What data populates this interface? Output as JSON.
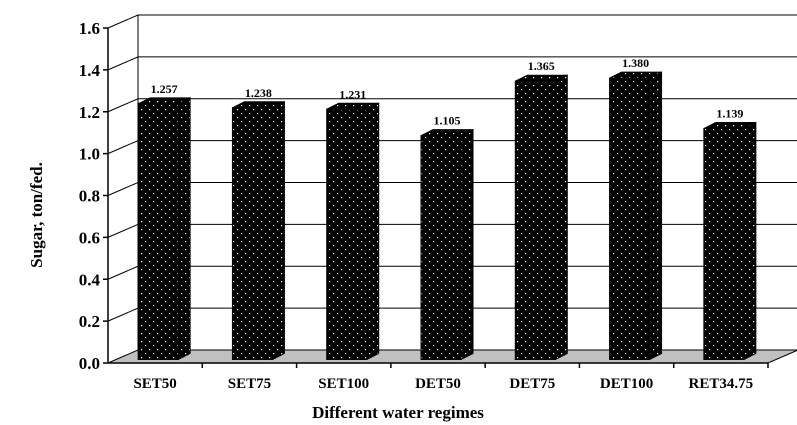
{
  "chart_data": {
    "type": "bar",
    "title": "",
    "xlabel": "Different water regimes",
    "ylabel": "Sugar, ton/fed.",
    "ylim": [
      0,
      1.6
    ],
    "yticks": [
      "0.0",
      "0.2",
      "0.4",
      "0.6",
      "0.8",
      "1.0",
      "1.2",
      "1.4",
      "1.6"
    ],
    "grid": true,
    "categories": [
      "SET50",
      "SET75",
      "SET100",
      "DET50",
      "DET75",
      "DET100",
      "RET34.75"
    ],
    "values": [
      1.257,
      1.238,
      1.231,
      1.105,
      1.365,
      1.38,
      1.139
    ],
    "data_labels": [
      "1.257",
      "1.238",
      "1.231",
      "1.105",
      "1.365",
      "1.380",
      "1.139"
    ],
    "colors": {
      "bar": "#000000",
      "bar_dots": "#ffffff",
      "floor": "#c0c0c0",
      "grid": "#000000"
    }
  }
}
